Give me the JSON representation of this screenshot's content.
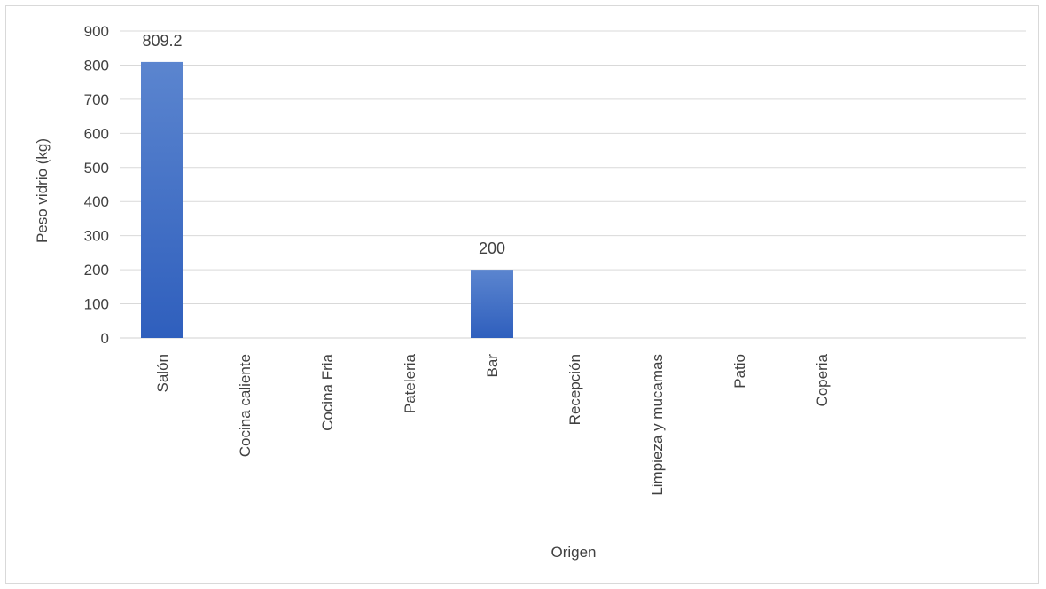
{
  "chart_data": {
    "type": "bar",
    "categories": [
      "Salón",
      "Cocina caliente",
      "Cocina Fria",
      "Pateleria",
      "Bar",
      "Recepción",
      "Limpieza y mucamas",
      "Patio",
      "Coperia"
    ],
    "values": [
      809.2,
      0,
      0,
      0,
      200,
      0,
      0,
      0,
      0
    ],
    "data_labels": [
      "809.2",
      "",
      "",
      "",
      "200",
      "",
      "",
      "",
      ""
    ],
    "xlabel": "Origen",
    "ylabel": "Peso vidrio (kg)",
    "ylim": [
      0,
      900
    ],
    "yticks": [
      0,
      100,
      200,
      300,
      400,
      500,
      600,
      700,
      800,
      900
    ],
    "grid": true,
    "legend": "none",
    "colors": {
      "bar_top": "#5b85cf",
      "bar_bottom": "#2f5fbd",
      "grid": "#d9d9d9",
      "text": "#404040"
    }
  }
}
